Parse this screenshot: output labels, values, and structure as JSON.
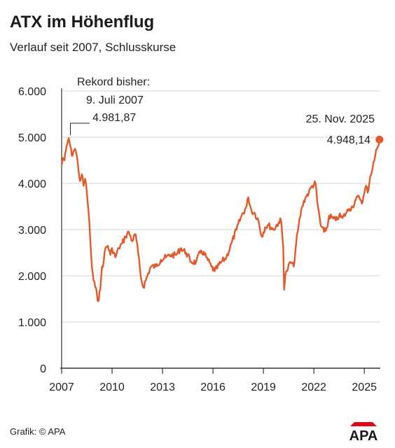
{
  "header": {
    "title": "ATX im Höhenflug",
    "subtitle": "Verlauf seit 2007, Schlusskurse"
  },
  "footer": {
    "credit": "Grafik: © APA",
    "logo_text": "APA"
  },
  "colors": {
    "series": "#e05a2b",
    "grid": "#d5d5d5",
    "axis": "#333333",
    "logo_red": "#e30613",
    "logo_dark": "#1a1a1a"
  },
  "chart_data": {
    "type": "line",
    "title": "ATX im Höhenflug",
    "subtitle": "Verlauf seit 2007, Schlusskurse",
    "xlim": [
      2007.0,
      2025.95
    ],
    "ylim": [
      0,
      6000
    ],
    "grid": "horizontal",
    "x_ticks": [
      2007,
      2010,
      2013,
      2016,
      2019,
      2022,
      2025
    ],
    "x_tick_labels": [
      "2007",
      "2010",
      "2013",
      "2016",
      "2019",
      "2022",
      "2025"
    ],
    "y_ticks": [
      0,
      1000,
      2000,
      3000,
      4000,
      5000,
      6000
    ],
    "y_tick_labels": [
      "0",
      "1.000",
      "2.000",
      "3.000",
      "4.000",
      "5.000",
      "6.000"
    ],
    "series": [
      {
        "x": [
          2007.0,
          2007.08,
          2007.17,
          2007.25,
          2007.33,
          2007.42,
          2007.52,
          2007.6,
          2007.7,
          2007.8,
          2007.9,
          2008.0,
          2008.1,
          2008.2,
          2008.3,
          2008.4,
          2008.5,
          2008.6,
          2008.7,
          2008.8,
          2008.9,
          2009.0,
          2009.1,
          2009.17,
          2009.3,
          2009.4,
          2009.5,
          2009.6,
          2009.75,
          2009.9,
          2010.0,
          2010.2,
          2010.4,
          2010.6,
          2010.8,
          2011.0,
          2011.2,
          2011.4,
          2011.55,
          2011.7,
          2011.85,
          2012.0,
          2012.3,
          2012.6,
          2012.9,
          2013.2,
          2013.5,
          2013.8,
          2014.1,
          2014.4,
          2014.7,
          2015.0,
          2015.3,
          2015.6,
          2015.9,
          2016.1,
          2016.5,
          2016.8,
          2017.1,
          2017.4,
          2017.7,
          2018.0,
          2018.1,
          2018.3,
          2018.5,
          2018.7,
          2018.9,
          2019.1,
          2019.3,
          2019.6,
          2019.9,
          2020.05,
          2020.18,
          2020.23,
          2020.3,
          2020.4,
          2020.6,
          2020.8,
          2020.95,
          2021.1,
          2021.3,
          2021.5,
          2021.7,
          2021.9,
          2022.1,
          2022.2,
          2022.4,
          2022.6,
          2022.8,
          2022.9,
          2023.1,
          2023.3,
          2023.5,
          2023.7,
          2023.9,
          2024.1,
          2024.3,
          2024.5,
          2024.7,
          2024.9,
          2025.1,
          2025.2,
          2025.35,
          2025.5,
          2025.65,
          2025.75,
          2025.9
        ],
        "y": [
          4400,
          4550,
          4500,
          4700,
          4850,
          4981.87,
          4800,
          4600,
          4700,
          4750,
          4600,
          4300,
          4050,
          4200,
          3950,
          4100,
          3800,
          3400,
          2800,
          2200,
          1900,
          1750,
          1600,
          1450,
          1700,
          2200,
          2300,
          2600,
          2650,
          2450,
          2600,
          2400,
          2600,
          2700,
          2850,
          2950,
          2750,
          2900,
          2500,
          2000,
          1750,
          1900,
          2200,
          2200,
          2350,
          2400,
          2450,
          2450,
          2600,
          2500,
          2300,
          2300,
          2550,
          2400,
          2200,
          2100,
          2300,
          2400,
          2700,
          3000,
          3300,
          3500,
          3700,
          3400,
          3350,
          3200,
          2850,
          3050,
          3100,
          3000,
          3150,
          3200,
          2600,
          1700,
          2000,
          2100,
          2300,
          2200,
          2700,
          3100,
          3500,
          3700,
          3800,
          3950,
          4000,
          3600,
          3100,
          2950,
          3050,
          3300,
          3250,
          3200,
          3300,
          3250,
          3350,
          3450,
          3500,
          3650,
          3700,
          3600,
          3950,
          3800,
          4150,
          4350,
          4600,
          4750,
          4948.14
        ]
      }
    ],
    "annotations": [
      {
        "label": "record",
        "x": 2007.52,
        "y": 4981.87,
        "lines": [
          "Rekord bisher:",
          "9. Juli 2007",
          "4.981,87"
        ]
      },
      {
        "label": "last",
        "x": 2025.9,
        "y": 4948.14,
        "lines": [
          "25. Nov. 2025",
          "4.948,14"
        ]
      }
    ]
  }
}
